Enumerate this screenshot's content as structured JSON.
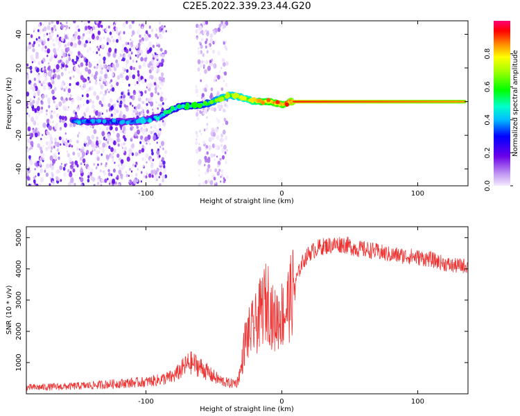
{
  "figure": {
    "title": "C2E5.2022.339.23.44.G20"
  },
  "chart_data": [
    {
      "type": "heatmap",
      "title": "C2E5.2022.339.23.44.G20",
      "xlabel": "Height of straight line (km)",
      "ylabel": "Frequency (Hz)",
      "xlim": [
        -188,
        137
      ],
      "ylim": [
        -50,
        48
      ],
      "xticks": [
        -100,
        0,
        100
      ],
      "yticks": [
        -40,
        -20,
        0,
        20,
        40
      ],
      "colorbar": {
        "label": "Normalized spectral amplitude",
        "range": [
          0.0,
          1.0
        ],
        "ticks": [
          "0.0",
          "0.2",
          "0.4",
          "0.6",
          "0.8"
        ]
      },
      "ridge": {
        "x": [
          -154,
          -140,
          -125,
          -110,
          -100,
          -90,
          -82,
          -75,
          -68,
          -60,
          -52,
          -45,
          -38,
          -30,
          -22,
          -15,
          -8,
          -2,
          2,
          6,
          10,
          40,
          80,
          110,
          135
        ],
        "freq": [
          -11.5,
          -11.8,
          -12,
          -12,
          -11,
          -9,
          -5,
          -3,
          -2.5,
          -2,
          -0.5,
          2,
          4,
          2.5,
          0.5,
          0,
          0,
          -1.5,
          -1.5,
          0,
          0,
          0,
          0,
          0,
          0
        ],
        "amplitude": [
          0.35,
          0.3,
          0.3,
          0.3,
          0.35,
          0.4,
          0.45,
          0.45,
          0.48,
          0.5,
          0.55,
          0.6,
          0.62,
          0.65,
          0.7,
          0.75,
          0.8,
          0.82,
          0.82,
          0.85,
          0.92,
          0.9,
          0.88,
          0.86,
          0.85
        ]
      },
      "noise_bands": [
        {
          "x_from": -188,
          "x_to": -85,
          "density": "high"
        },
        {
          "x_from": -63,
          "x_to": -40,
          "density": "medium"
        }
      ]
    },
    {
      "type": "line",
      "xlabel": "Height of straight line (km)",
      "ylabel": "SNR (10 * v/v)",
      "xlim": [
        -188,
        137
      ],
      "ylim": [
        0,
        5350
      ],
      "xticks": [
        -100,
        0,
        100
      ],
      "yticks": [
        1000,
        2000,
        3000,
        4000,
        5000
      ],
      "color": "#ee3333",
      "series": [
        {
          "name": "SNR",
          "x": [
            -188,
            -160,
            -140,
            -120,
            -100,
            -90,
            -80,
            -72,
            -68,
            -64,
            -58,
            -52,
            -45,
            -38,
            -33,
            -30,
            -27,
            -23,
            -18,
            -14,
            -10,
            -6,
            -2,
            2,
            6,
            10,
            15,
            20,
            28,
            35,
            45,
            55,
            65,
            80,
            95,
            110,
            125,
            137
          ],
          "y": [
            200,
            230,
            270,
            330,
            380,
            450,
            550,
            850,
            1000,
            950,
            800,
            600,
            420,
            330,
            360,
            800,
            1700,
            2000,
            2300,
            2800,
            3000,
            2300,
            2500,
            2600,
            3000,
            3600,
            4200,
            4500,
            4700,
            4750,
            4800,
            4650,
            4600,
            4450,
            4400,
            4300,
            4100,
            4100
          ]
        }
      ]
    }
  ]
}
